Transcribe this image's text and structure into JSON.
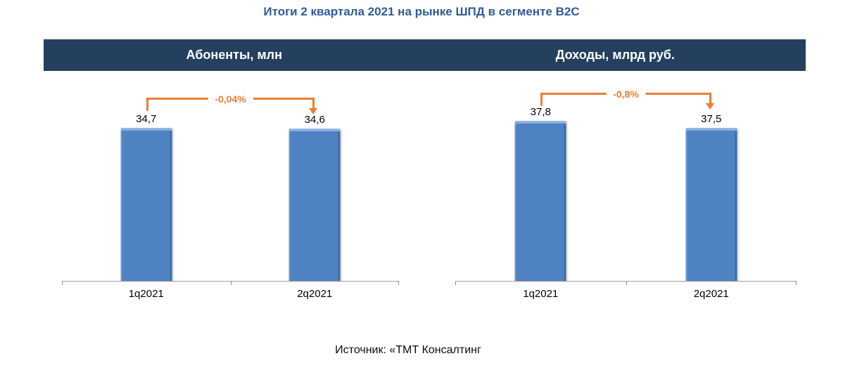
{
  "title": "Итоги 2 квартала 2021 на рынке ШПД в сегменте B2C",
  "source_note": "Источник: «ТМТ Консалтинг",
  "header": {
    "left_label": "Абоненты, млн",
    "right_label": "Доходы, млрд руб.",
    "bg_color": "#24405E",
    "text_color": "#FFFFFF"
  },
  "colors": {
    "title_blue": "#2E5B97",
    "bar_fill": "#4E82C2",
    "bar_edge_dark": "#3E6CA4",
    "bar_bevel_light": "#8AB0DE",
    "annotation_orange": "#ED7D31",
    "axis_gray": "#A0A0A0",
    "value_text": "#000000"
  },
  "chart_data": [
    {
      "type": "bar",
      "title": "Абоненты, млн",
      "categories": [
        "1q2021",
        "2q2021"
      ],
      "values": [
        34.7,
        34.6
      ],
      "value_labels": [
        "34,7",
        "34,6"
      ],
      "change_label": "-0,04%",
      "xlabel": "",
      "ylabel": "",
      "ylim": [
        0,
        40
      ],
      "grid": false,
      "legend": "none"
    },
    {
      "type": "bar",
      "title": "Доходы, млрд руб.",
      "categories": [
        "1q2021",
        "2q2021"
      ],
      "values": [
        37.8,
        37.5
      ],
      "value_labels": [
        "37,8",
        "37,5"
      ],
      "change_label": "-0,8%",
      "xlabel": "",
      "ylabel": "",
      "ylim": [
        31,
        38.5
      ],
      "grid": false,
      "legend": "none"
    }
  ]
}
